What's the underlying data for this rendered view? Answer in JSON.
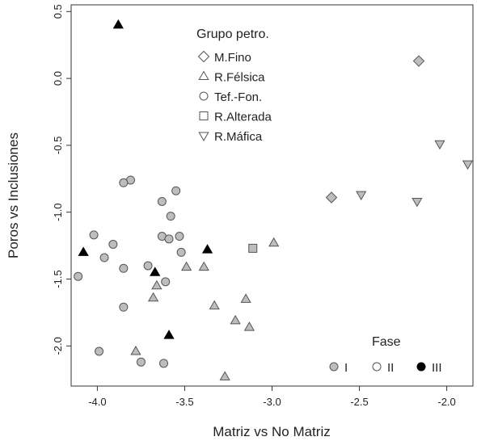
{
  "chart_data": {
    "type": "scatter",
    "xlabel": "Matriz vs No Matriz",
    "ylabel": "Poros vs Inclusiones",
    "xlim": [
      -4.15,
      -1.85
    ],
    "ylim": [
      -2.3,
      0.55
    ],
    "xticks": [
      -4.0,
      -3.5,
      -3.0,
      -2.5,
      -2.0
    ],
    "xtick_labels": [
      "-4.0",
      "-3.5",
      "-3.0",
      "-2.5",
      "-2.0"
    ],
    "yticks": [
      0.5,
      0.0,
      -0.5,
      -1.0,
      -1.5,
      -2.0
    ],
    "ytick_labels": [
      "0.5",
      "0.0",
      "-0.5",
      "-1.0",
      "-1.5",
      "-2.0"
    ],
    "grid": false,
    "shape_legend": {
      "title": "Grupo petro.",
      "placement": "top-center",
      "entries": [
        {
          "label": "M.Fino",
          "shape": "diamond"
        },
        {
          "label": "R.Félsica",
          "shape": "triangle-up"
        },
        {
          "label": "Tef.-Fon.",
          "shape": "circle"
        },
        {
          "label": "R.Alterada",
          "shape": "square"
        },
        {
          "label": "R.Máfica",
          "shape": "triangle-down"
        }
      ]
    },
    "fill_legend": {
      "title": "Fase",
      "placement": "bottom-right",
      "entries": [
        {
          "label": "I",
          "fill": "#bdbdbd"
        },
        {
          "label": "II",
          "fill": "#ffffff"
        },
        {
          "label": "III",
          "fill": "#000000"
        }
      ]
    },
    "colors": {
      "fase_I": "#bdbdbd",
      "fase_II": "#ffffff",
      "fase_III": "#000000",
      "stroke": "#555555"
    },
    "points": [
      {
        "x": -2.16,
        "y": 0.13,
        "shape": "diamond",
        "fase": "I"
      },
      {
        "x": -2.66,
        "y": -0.89,
        "shape": "diamond",
        "fase": "I"
      },
      {
        "x": -2.04,
        "y": -0.49,
        "shape": "triangle-down",
        "fase": "I"
      },
      {
        "x": -1.88,
        "y": -0.64,
        "shape": "triangle-down",
        "fase": "I"
      },
      {
        "x": -2.49,
        "y": -0.87,
        "shape": "triangle-down",
        "fase": "I"
      },
      {
        "x": -2.17,
        "y": -0.92,
        "shape": "triangle-down",
        "fase": "I"
      },
      {
        "x": -3.11,
        "y": -1.27,
        "shape": "square",
        "fase": "I"
      },
      {
        "x": -2.99,
        "y": -1.23,
        "shape": "triangle-up",
        "fase": "I"
      },
      {
        "x": -3.49,
        "y": -1.41,
        "shape": "triangle-up",
        "fase": "I"
      },
      {
        "x": -3.39,
        "y": -1.41,
        "shape": "triangle-up",
        "fase": "I"
      },
      {
        "x": -3.66,
        "y": -1.55,
        "shape": "triangle-up",
        "fase": "I"
      },
      {
        "x": -3.68,
        "y": -1.64,
        "shape": "triangle-up",
        "fase": "I"
      },
      {
        "x": -3.15,
        "y": -1.65,
        "shape": "triangle-up",
        "fase": "I"
      },
      {
        "x": -3.33,
        "y": -1.7,
        "shape": "triangle-up",
        "fase": "I"
      },
      {
        "x": -3.21,
        "y": -1.81,
        "shape": "triangle-up",
        "fase": "I"
      },
      {
        "x": -3.13,
        "y": -1.86,
        "shape": "triangle-up",
        "fase": "I"
      },
      {
        "x": -3.78,
        "y": -2.04,
        "shape": "triangle-up",
        "fase": "I"
      },
      {
        "x": -3.27,
        "y": -2.23,
        "shape": "triangle-up",
        "fase": "I"
      },
      {
        "x": -3.81,
        "y": -0.76,
        "shape": "circle",
        "fase": "I"
      },
      {
        "x": -3.85,
        "y": -0.78,
        "shape": "circle",
        "fase": "I"
      },
      {
        "x": -3.55,
        "y": -0.84,
        "shape": "circle",
        "fase": "I"
      },
      {
        "x": -3.63,
        "y": -0.92,
        "shape": "circle",
        "fase": "I"
      },
      {
        "x": -3.58,
        "y": -1.03,
        "shape": "circle",
        "fase": "I"
      },
      {
        "x": -4.02,
        "y": -1.17,
        "shape": "circle",
        "fase": "I"
      },
      {
        "x": -3.63,
        "y": -1.18,
        "shape": "circle",
        "fase": "I"
      },
      {
        "x": -3.53,
        "y": -1.18,
        "shape": "circle",
        "fase": "I"
      },
      {
        "x": -3.59,
        "y": -1.2,
        "shape": "circle",
        "fase": "I"
      },
      {
        "x": -3.91,
        "y": -1.24,
        "shape": "circle",
        "fase": "I"
      },
      {
        "x": -3.52,
        "y": -1.3,
        "shape": "circle",
        "fase": "I"
      },
      {
        "x": -3.96,
        "y": -1.34,
        "shape": "circle",
        "fase": "I"
      },
      {
        "x": -3.71,
        "y": -1.4,
        "shape": "circle",
        "fase": "I"
      },
      {
        "x": -3.85,
        "y": -1.42,
        "shape": "circle",
        "fase": "I"
      },
      {
        "x": -4.11,
        "y": -1.48,
        "shape": "circle",
        "fase": "I"
      },
      {
        "x": -3.61,
        "y": -1.52,
        "shape": "circle",
        "fase": "I"
      },
      {
        "x": -3.85,
        "y": -1.71,
        "shape": "circle",
        "fase": "I"
      },
      {
        "x": -3.99,
        "y": -2.04,
        "shape": "circle",
        "fase": "I"
      },
      {
        "x": -3.75,
        "y": -2.12,
        "shape": "circle",
        "fase": "I"
      },
      {
        "x": -3.62,
        "y": -2.13,
        "shape": "circle",
        "fase": "I"
      },
      {
        "x": -3.88,
        "y": 0.4,
        "shape": "triangle-up",
        "fase": "III"
      },
      {
        "x": -4.08,
        "y": -1.3,
        "shape": "triangle-up",
        "fase": "III"
      },
      {
        "x": -3.37,
        "y": -1.28,
        "shape": "triangle-up",
        "fase": "III"
      },
      {
        "x": -3.67,
        "y": -1.45,
        "shape": "triangle-up",
        "fase": "III"
      },
      {
        "x": -3.59,
        "y": -1.92,
        "shape": "triangle-up",
        "fase": "III"
      }
    ]
  }
}
